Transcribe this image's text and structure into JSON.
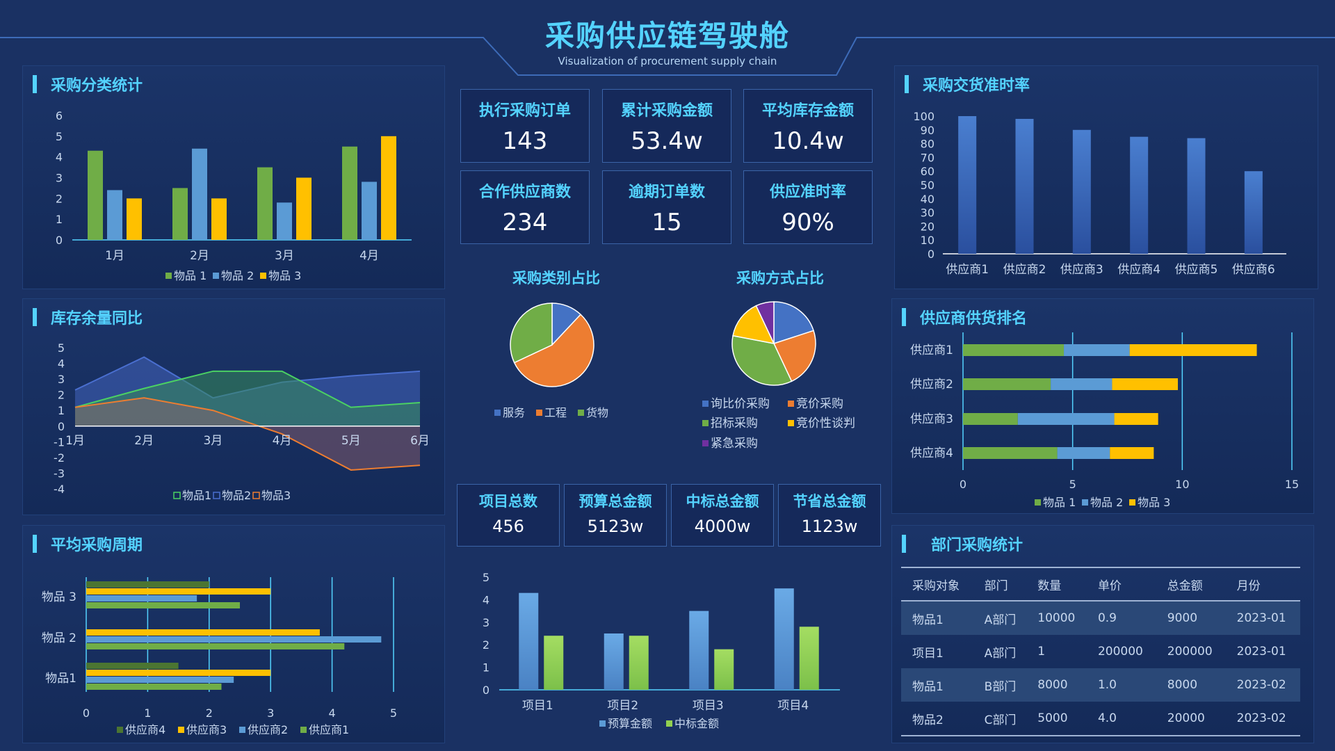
{
  "header": {
    "title": "采购供应链驾驶舱",
    "subtitle": "Visualization of procurement supply chain"
  },
  "panels": {
    "category_stats": "采购分类统计",
    "inventory_yoy": "库存余量同比",
    "avg_cycle": "平均采购周期",
    "on_time_rate": "采购交货准时率",
    "supplier_rank": "供应商供货排名",
    "dept_stats": "部门采购统计"
  },
  "kpis_top": [
    {
      "label": "执行采购订单",
      "value": "143"
    },
    {
      "label": "累计采购金额",
      "value": "53.4w"
    },
    {
      "label": "平均库存金额",
      "value": "10.4w"
    },
    {
      "label": "合作供应商数",
      "value": "234"
    },
    {
      "label": "逾期订单数",
      "value": "15"
    },
    {
      "label": "供应准时率",
      "value": "90%"
    }
  ],
  "kpis_mid": [
    {
      "label": "项目总数",
      "value": "456"
    },
    {
      "label": "预算总金额",
      "value": "5123w"
    },
    {
      "label": "中标总金额",
      "value": "4000w"
    },
    {
      "label": "节省总金额",
      "value": "1123w"
    }
  ],
  "pie_titles": {
    "category": "采购类别占比",
    "method": "采购方式占比"
  },
  "dept_table": {
    "headers": [
      "采购对象",
      "部门",
      "数量",
      "单价",
      "总金额",
      "月份"
    ],
    "rows": [
      [
        "物品1",
        "A部门",
        "10000",
        "0.9",
        "9000",
        "2023-01"
      ],
      [
        "项目1",
        "A部门",
        "1",
        "200000",
        "200000",
        "2023-01"
      ],
      [
        "物品1",
        "B部门",
        "8000",
        "1.0",
        "8000",
        "2023-02"
      ],
      [
        "物品2",
        "C部门",
        "5000",
        "4.0",
        "20000",
        "2023-02"
      ]
    ]
  },
  "colors": {
    "green": "#70ad47",
    "blue": "#5b9bd5",
    "yellow": "#ffc000",
    "orange": "#ed7d31",
    "royal": "#4472c4",
    "purple": "#7030a0",
    "darkgreen": "#4b7532",
    "lightgreen": "#92d050",
    "accent": "#54d3ff"
  },
  "chart_data": [
    {
      "id": "category",
      "type": "bar",
      "categories": [
        "1月",
        "2月",
        "3月",
        "4月"
      ],
      "series": [
        {
          "name": "物品 1",
          "values": [
            4.3,
            2.5,
            3.5,
            4.5
          ]
        },
        {
          "name": "物品 2",
          "values": [
            2.4,
            4.4,
            1.8,
            2.8
          ]
        },
        {
          "name": "物品 3",
          "values": [
            2.0,
            2.0,
            3.0,
            5.0
          ]
        }
      ],
      "ylim": [
        0,
        6
      ],
      "yticks": [
        "0",
        "1",
        "2",
        "3",
        "4",
        "5",
        "6"
      ]
    },
    {
      "id": "inventory",
      "type": "area",
      "categories": [
        "1月",
        "2月",
        "3月",
        "4月",
        "5月",
        "6月"
      ],
      "series": [
        {
          "name": "物品1",
          "values": [
            1.2,
            2.4,
            3.5,
            3.5,
            1.2,
            1.5
          ]
        },
        {
          "name": "物品2",
          "values": [
            2.3,
            4.4,
            1.8,
            2.8,
            3.2,
            3.5
          ]
        },
        {
          "name": "物品3",
          "values": [
            1.2,
            1.8,
            1.0,
            -0.5,
            -2.8,
            -2.5
          ]
        }
      ],
      "ylim": [
        -4,
        5
      ],
      "yticks": [
        "5",
        "4",
        "3",
        "2",
        "1",
        "0",
        "-1",
        "-2",
        "-3",
        "-4"
      ]
    },
    {
      "id": "cycle",
      "type": "bar",
      "orientation": "horizontal",
      "categories": [
        "物品1",
        "物品 2",
        "物品 3"
      ],
      "series": [
        {
          "name": "供应商4",
          "values": [
            1.5,
            0,
            2.0
          ]
        },
        {
          "name": "供应商3",
          "values": [
            3.0,
            3.8,
            3.0
          ]
        },
        {
          "name": "供应商2",
          "values": [
            2.4,
            4.8,
            1.8
          ]
        },
        {
          "name": "供应商1",
          "values": [
            2.2,
            4.2,
            2.5
          ]
        }
      ],
      "xlim": [
        0,
        5
      ],
      "xticks": [
        "0",
        "1",
        "2",
        "3",
        "4",
        "5"
      ]
    },
    {
      "id": "pie_category",
      "type": "pie",
      "labels": [
        "服务",
        "工程",
        "货物"
      ],
      "values": [
        12,
        56,
        32
      ]
    },
    {
      "id": "pie_method",
      "type": "pie",
      "labels": [
        "询比价采购",
        "竞价采购",
        "招标采购",
        "竞价性谈判",
        "紧急采购"
      ],
      "values": [
        20,
        23,
        35,
        15,
        7
      ]
    },
    {
      "id": "projects",
      "type": "bar",
      "categories": [
        "项目1",
        "项目2",
        "项目3",
        "项目4"
      ],
      "series": [
        {
          "name": "预算金额",
          "values": [
            4.3,
            2.5,
            3.5,
            4.5
          ]
        },
        {
          "name": "中标金额",
          "values": [
            2.4,
            2.4,
            1.8,
            2.8
          ]
        }
      ],
      "ylim": [
        0,
        5
      ],
      "yticks": [
        "0",
        "1",
        "2",
        "3",
        "4",
        "5"
      ]
    },
    {
      "id": "ontime",
      "type": "bar",
      "categories": [
        "供应商1",
        "供应商2",
        "供应商3",
        "供应商4",
        "供应商5",
        "供应商6"
      ],
      "values": [
        100,
        98,
        90,
        85,
        84,
        60
      ],
      "ylim": [
        0,
        100
      ],
      "yticks": [
        "0",
        "10",
        "20",
        "30",
        "40",
        "50",
        "60",
        "70",
        "80",
        "90",
        "100"
      ]
    },
    {
      "id": "ranking",
      "type": "bar",
      "orientation": "horizontal",
      "stacked": true,
      "categories": [
        "供应商1",
        "供应商2",
        "供应商3",
        "供应商4"
      ],
      "series": [
        {
          "name": "物品 1",
          "values": [
            4.6,
            4.0,
            2.5,
            4.3
          ]
        },
        {
          "name": "物品 2",
          "values": [
            3.0,
            2.8,
            4.4,
            2.4
          ]
        },
        {
          "name": "物品 3",
          "values": [
            5.8,
            3.0,
            2.0,
            2.0
          ]
        }
      ],
      "xlim": [
        0,
        15
      ],
      "xticks": [
        "0",
        "5",
        "10",
        "15"
      ]
    }
  ]
}
